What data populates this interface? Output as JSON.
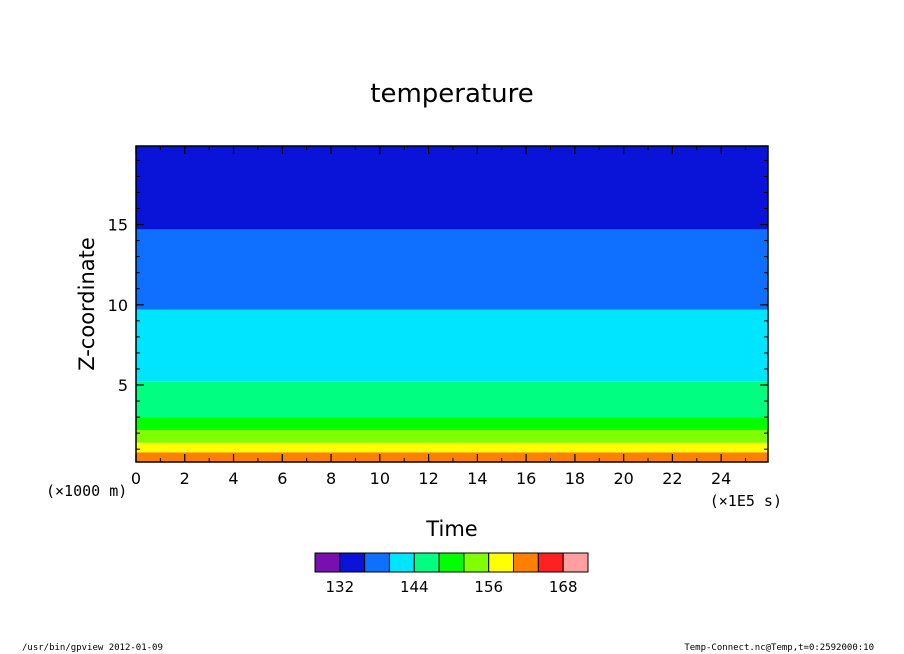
{
  "chart_data": {
    "type": "heatmap",
    "title": "temperature",
    "xlabel": "Time",
    "ylabel": "Z-coordinate",
    "x_scale_label": "(×1E5 s)",
    "y_scale_label": "(×1000 m)",
    "xlim": [
      0,
      25.92
    ],
    "ylim": [
      0.2,
      19.9
    ],
    "xticks": [
      0,
      2,
      4,
      6,
      8,
      10,
      12,
      14,
      16,
      18,
      20,
      22,
      24
    ],
    "yticks": [
      5,
      10,
      15
    ],
    "bands": [
      {
        "from": 0.2,
        "to": 0.8,
        "color": "#ff7f00"
      },
      {
        "from": 0.8,
        "to": 1.4,
        "color": "#ffff00"
      },
      {
        "from": 1.4,
        "to": 2.2,
        "color": "#7fff00"
      },
      {
        "from": 2.2,
        "to": 3.0,
        "color": "#00ff00"
      },
      {
        "from": 3.0,
        "to": 5.2,
        "color": "#00ff80"
      },
      {
        "from": 5.2,
        "to": 9.7,
        "color": "#00e5ff"
      },
      {
        "from": 9.7,
        "to": 14.7,
        "color": "#0f6fff"
      },
      {
        "from": 14.7,
        "to": 19.9,
        "color": "#0a14d8"
      }
    ],
    "colorbar": {
      "colors": [
        "#7a0fb0",
        "#0a14d8",
        "#0f6fff",
        "#00e5ff",
        "#00ff80",
        "#00ff00",
        "#7fff00",
        "#ffff00",
        "#ff7f00",
        "#ff2020",
        "#ff9f9f"
      ],
      "labels": [
        "132",
        "144",
        "156",
        "168"
      ]
    }
  },
  "footer": {
    "left": "/usr/bin/gpview   2012-01-09",
    "right": "Temp-Connect.nc@Temp,t=0:2592000:10"
  }
}
